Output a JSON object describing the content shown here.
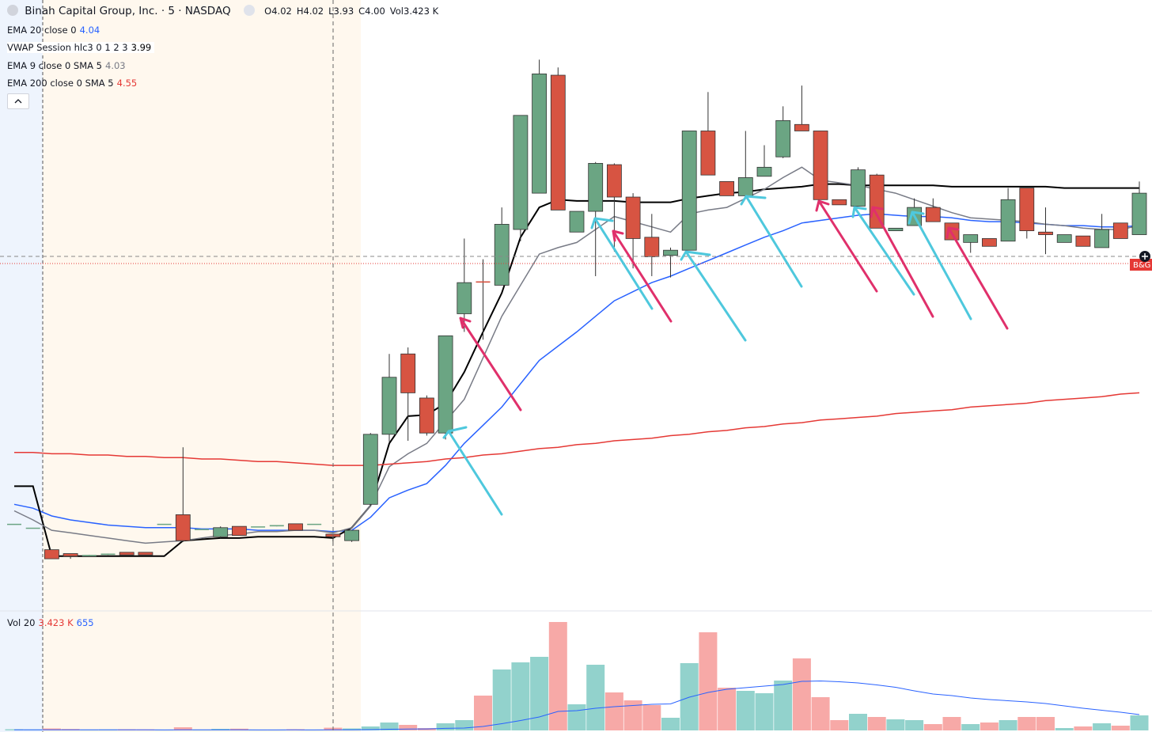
{
  "header": {
    "symbol": "Binah Capital Group, Inc. · 5 · NASDAQ",
    "ohlc": [
      {
        "label": "O",
        "value": "4.02"
      },
      {
        "label": "H",
        "value": "4.02"
      },
      {
        "label": "L",
        "value": "3.93"
      },
      {
        "label": "C",
        "value": "4.00"
      },
      {
        "label": "Vol",
        "value": "3.423 K"
      }
    ],
    "indicators": [
      "4.04",
      "3.99",
      "4.03",
      "4.55"
    ],
    "volume_legend": [
      "3.423 K",
      "655"
    ],
    "price_tag": "B&G"
  },
  "chart_data": {
    "type": "candlestick",
    "open": [
      4.1,
      4.07,
      3.9,
      3.87,
      3.85,
      3.86,
      3.88,
      3.88,
      4.1,
      4.17,
      4.06,
      4.0,
      4.08,
      4.08,
      4.08,
      4.1,
      4.1,
      4.02,
      3.97,
      4.25,
      4.79,
      5.41,
      5.07,
      4.8,
      5.72,
      5.97,
      5.94,
      6.37,
      6.65,
      7.56,
      6.35,
      6.51,
      6.87,
      6.62,
      6.31,
      6.17,
      6.21,
      7.13,
      6.74,
      6.63,
      6.78,
      6.93,
      7.18,
      7.13,
      6.6,
      6.55,
      6.79,
      6.36,
      6.4,
      6.54,
      6.42,
      6.27,
      6.3,
      6.28,
      6.69,
      6.35,
      6.27,
      6.32,
      6.23,
      6.42,
      6.33
    ],
    "high": [
      4.1,
      4.07,
      3.9,
      3.87,
      3.86,
      3.87,
      3.88,
      3.88,
      4.1,
      4.69,
      4.06,
      4.08,
      4.08,
      4.08,
      4.09,
      4.1,
      4.1,
      4.02,
      4.05,
      4.8,
      5.41,
      5.46,
      5.09,
      5.55,
      6.3,
      6.14,
      6.54,
      7.25,
      7.68,
      7.62,
      6.51,
      6.89,
      6.88,
      6.65,
      6.49,
      6.23,
      7.13,
      7.43,
      6.74,
      7.13,
      7.02,
      7.32,
      7.48,
      7.13,
      6.6,
      6.85,
      6.8,
      6.38,
      6.61,
      6.61,
      6.42,
      6.33,
      6.3,
      6.69,
      6.69,
      6.54,
      6.33,
      6.32,
      6.49,
      6.42,
      6.74
    ],
    "low": [
      4.1,
      4.07,
      3.83,
      3.83,
      3.85,
      3.86,
      3.86,
      3.86,
      4.1,
      3.96,
      4.06,
      3.99,
      4.01,
      4.08,
      4.08,
      4.05,
      4.1,
      3.93,
      3.96,
      4.24,
      4.73,
      4.74,
      4.78,
      4.75,
      5.58,
      5.52,
      5.94,
      6.28,
      6.65,
      6.52,
      6.35,
      6.01,
      6.2,
      6.07,
      6.01,
      6.0,
      6.21,
      6.79,
      6.63,
      6.63,
      6.78,
      6.92,
      7.13,
      6.6,
      6.56,
      6.55,
      6.38,
      6.36,
      6.4,
      6.43,
      6.29,
      6.19,
      6.24,
      6.28,
      6.3,
      6.18,
      6.27,
      6.24,
      6.23,
      6.3,
      6.33
    ],
    "close": [
      4.1,
      4.07,
      3.83,
      3.85,
      3.86,
      3.87,
      3.86,
      3.86,
      4.1,
      3.97,
      4.06,
      4.07,
      4.01,
      4.08,
      4.09,
      4.05,
      4.1,
      4.0,
      4.05,
      4.79,
      5.23,
      5.11,
      4.8,
      5.55,
      5.96,
      5.96,
      6.41,
      7.25,
      7.57,
      6.52,
      6.51,
      6.88,
      6.62,
      6.3,
      6.16,
      6.21,
      7.13,
      6.79,
      6.63,
      6.77,
      6.85,
      7.21,
      7.13,
      6.6,
      6.56,
      6.83,
      6.38,
      6.38,
      6.54,
      6.43,
      6.29,
      6.33,
      6.24,
      6.6,
      6.36,
      6.33,
      6.33,
      6.24,
      6.37,
      6.3,
      6.65
    ],
    "volume": [
      1500,
      1200,
      2500,
      1800,
      1000,
      1200,
      1500,
      1300,
      900,
      4000,
      800,
      2000,
      2200,
      700,
      1000,
      1500,
      800,
      3423,
      2500,
      5000,
      10000,
      7000,
      3000,
      9000,
      13000,
      44000,
      77000,
      86000,
      93000,
      137000,
      33000,
      83000,
      48000,
      38000,
      32000,
      16000,
      85000,
      124000,
      54000,
      50000,
      47000,
      63000,
      91000,
      42000,
      13000,
      21000,
      17000,
      14000,
      13000,
      8000,
      17000,
      8000,
      10000,
      13000,
      17000,
      17000,
      3000,
      5000,
      9000,
      6000,
      19000
    ],
    "ylim": [
      3.44,
      8.14
    ],
    "volume_ylim": [
      0,
      150000
    ],
    "up_color": "#6ba583",
    "down_color": "#d75442",
    "volume_up_color": "#92d2cc",
    "volume_down_color": "#f7a9a7",
    "series": [
      {
        "name": "EMA 20 close 0",
        "color": "#2962ff",
        "values": [
          4.25,
          4.22,
          4.16,
          4.13,
          4.11,
          4.09,
          4.08,
          4.07,
          4.07,
          4.07,
          4.06,
          4.06,
          4.06,
          4.05,
          4.05,
          4.05,
          4.05,
          4.04,
          4.05,
          4.15,
          4.3,
          4.36,
          4.41,
          4.55,
          4.72,
          4.86,
          5.0,
          5.18,
          5.36,
          5.47,
          5.58,
          5.7,
          5.82,
          5.89,
          5.96,
          6.01,
          6.07,
          6.13,
          6.19,
          6.25,
          6.31,
          6.36,
          6.42,
          6.44,
          6.46,
          6.48,
          6.49,
          6.48,
          6.47,
          6.47,
          6.46,
          6.44,
          6.43,
          6.43,
          6.42,
          6.41,
          6.4,
          6.4,
          6.39,
          6.39,
          6.4
        ]
      },
      {
        "name": "VWAP Session hlc3 0 1 2 3",
        "color": "#000000",
        "values": [
          4.39,
          4.39,
          3.85,
          3.85,
          3.85,
          3.85,
          3.85,
          3.85,
          3.85,
          3.97,
          3.98,
          3.99,
          3.99,
          4.0,
          4.0,
          4.0,
          4.0,
          3.99,
          4.07,
          4.24,
          4.72,
          4.93,
          4.94,
          5.03,
          5.27,
          5.58,
          5.88,
          6.31,
          6.54,
          6.6,
          6.59,
          6.59,
          6.59,
          6.58,
          6.58,
          6.58,
          6.61,
          6.63,
          6.65,
          6.66,
          6.68,
          6.69,
          6.7,
          6.72,
          6.72,
          6.71,
          6.71,
          6.71,
          6.71,
          6.71,
          6.7,
          6.7,
          6.7,
          6.7,
          6.7,
          6.7,
          6.69,
          6.69,
          6.69,
          6.69,
          6.69
        ]
      },
      {
        "name": "EMA 9 close 0 SMA 5",
        "color": "#787b86",
        "values": [
          4.2,
          4.13,
          4.05,
          4.03,
          4.01,
          3.99,
          3.97,
          3.95,
          3.96,
          3.97,
          3.99,
          4.01,
          4.02,
          4.04,
          4.04,
          4.05,
          4.05,
          4.03,
          4.07,
          4.24,
          4.54,
          4.64,
          4.72,
          4.89,
          5.06,
          5.38,
          5.7,
          5.94,
          6.18,
          6.23,
          6.27,
          6.37,
          6.47,
          6.43,
          6.39,
          6.35,
          6.49,
          6.52,
          6.54,
          6.61,
          6.68,
          6.77,
          6.85,
          6.75,
          6.73,
          6.71,
          6.68,
          6.65,
          6.6,
          6.55,
          6.5,
          6.46,
          6.45,
          6.44,
          6.43,
          6.41,
          6.4,
          6.38,
          6.37,
          6.37,
          6.4
        ]
      },
      {
        "name": "EMA 200 close 0 SMA 5",
        "color": "#e53935",
        "values": [
          4.65,
          4.65,
          4.64,
          4.64,
          4.63,
          4.63,
          4.62,
          4.62,
          4.61,
          4.61,
          4.6,
          4.6,
          4.59,
          4.58,
          4.58,
          4.57,
          4.56,
          4.55,
          4.55,
          4.55,
          4.56,
          4.57,
          4.58,
          4.6,
          4.61,
          4.63,
          4.64,
          4.66,
          4.68,
          4.69,
          4.71,
          4.72,
          4.74,
          4.75,
          4.76,
          4.78,
          4.79,
          4.81,
          4.82,
          4.84,
          4.85,
          4.87,
          4.88,
          4.9,
          4.91,
          4.92,
          4.93,
          4.95,
          4.96,
          4.97,
          4.98,
          5.0,
          5.01,
          5.02,
          5.03,
          5.05,
          5.06,
          5.07,
          5.08,
          5.1,
          5.11
        ]
      }
    ],
    "volume_sma": {
      "name": "Vol 20",
      "color": "#2962ff",
      "values": [
        700,
        690,
        700,
        690,
        680,
        670,
        670,
        660,
        650,
        670,
        660,
        660,
        660,
        650,
        650,
        655,
        650,
        655,
        780,
        1000,
        1450,
        1750,
        1850,
        2600,
        3000,
        5000,
        8500,
        12500,
        17000,
        24000,
        25000,
        28000,
        30000,
        31500,
        33000,
        33500,
        42000,
        48000,
        52000,
        54000,
        56000,
        58000,
        62000,
        62500,
        61500,
        60000,
        57500,
        54500,
        50000,
        46000,
        44000,
        41000,
        39000,
        37500,
        36000,
        34000,
        31000,
        28000,
        25500,
        23000,
        20000
      ]
    }
  }
}
